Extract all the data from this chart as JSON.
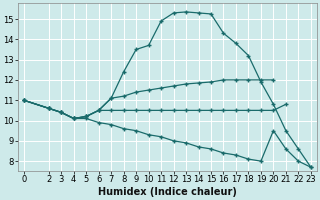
{
  "xlabel": "Humidex (Indice chaleur)",
  "bg_color": "#ceeaea",
  "line_color": "#1a6b6b",
  "grid_color": "#ffffff",
  "xlim": [
    -0.5,
    23.5
  ],
  "ylim": [
    7.5,
    15.8
  ],
  "xticks": [
    0,
    2,
    3,
    4,
    5,
    6,
    7,
    8,
    9,
    10,
    11,
    12,
    13,
    14,
    15,
    16,
    17,
    18,
    19,
    20,
    21,
    22,
    23
  ],
  "yticks": [
    8,
    9,
    10,
    11,
    12,
    13,
    14,
    15
  ],
  "arch_x": [
    0,
    2,
    3,
    4,
    5,
    6,
    7,
    8,
    9,
    10,
    11,
    12,
    13,
    14,
    15,
    16,
    17,
    18,
    19,
    20,
    21,
    22,
    23
  ],
  "arch_y": [
    11.0,
    10.6,
    10.4,
    10.1,
    10.2,
    10.5,
    11.1,
    12.4,
    13.5,
    13.7,
    14.9,
    15.3,
    15.35,
    15.3,
    15.25,
    14.3,
    13.8,
    13.2,
    11.9,
    10.8,
    9.5,
    8.6,
    7.7
  ],
  "flat_x": [
    0,
    2,
    3,
    4,
    5,
    6,
    7,
    8,
    9,
    10,
    11,
    12,
    13,
    14,
    15,
    16,
    17,
    18,
    19,
    20,
    21
  ],
  "flat_y": [
    11.0,
    10.6,
    10.4,
    10.1,
    10.2,
    10.5,
    10.5,
    10.5,
    10.5,
    10.5,
    10.5,
    10.5,
    10.5,
    10.5,
    10.5,
    10.5,
    10.5,
    10.5,
    10.5,
    10.5,
    10.8
  ],
  "rise_x": [
    0,
    2,
    3,
    4,
    5,
    6,
    7,
    8,
    9,
    10,
    11,
    12,
    13,
    14,
    15,
    16,
    17,
    18,
    19,
    20
  ],
  "rise_y": [
    11.0,
    10.6,
    10.4,
    10.1,
    10.2,
    10.5,
    11.1,
    11.2,
    11.4,
    11.5,
    11.6,
    11.7,
    11.8,
    11.85,
    11.9,
    12.0,
    12.0,
    12.0,
    12.0,
    12.0
  ],
  "diag_x": [
    0,
    2,
    3,
    4,
    5,
    6,
    7,
    8,
    9,
    10,
    11,
    12,
    13,
    14,
    15,
    16,
    17,
    18,
    19,
    20,
    21,
    22,
    23
  ],
  "diag_y": [
    11.0,
    10.6,
    10.4,
    10.1,
    10.1,
    9.9,
    9.8,
    9.6,
    9.5,
    9.3,
    9.2,
    9.0,
    8.9,
    8.7,
    8.6,
    8.4,
    8.3,
    8.1,
    8.0,
    9.5,
    8.6,
    8.0,
    7.7
  ]
}
